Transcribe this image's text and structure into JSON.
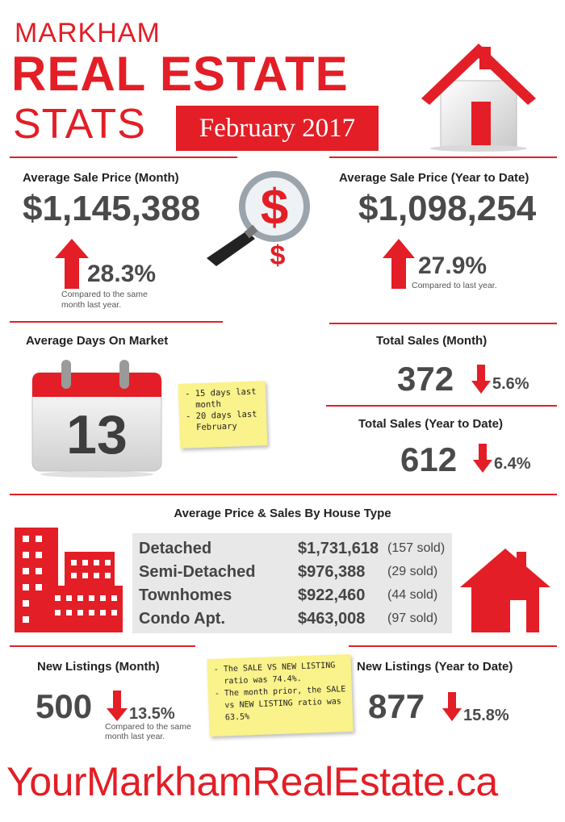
{
  "header": {
    "line1": "MARKHAM",
    "line2": "REAL ESTATE",
    "line3": "STATS",
    "date": "February 2017"
  },
  "avg_price_month": {
    "label": "Average Sale Price (Month)",
    "value": "$1,145,388",
    "change": "28.3%",
    "note_line1": "Compared to the same",
    "note_line2": "month last year."
  },
  "avg_price_ytd": {
    "label": "Average Sale Price (Year to Date)",
    "value": "$1,098,254",
    "change": "27.9%",
    "note": "Compared to last year."
  },
  "days_on_market": {
    "label": "Average Days On Market",
    "value": "13",
    "sticky_line1": "- 15 days last",
    "sticky_line2": "  month",
    "sticky_line3": "- 20 days last",
    "sticky_line4": "  February"
  },
  "total_sales_month": {
    "label": "Total Sales (Month)",
    "value": "372",
    "change": "5.6%"
  },
  "total_sales_ytd": {
    "label": "Total Sales (Year to Date)",
    "value": "612",
    "change": "6.4%"
  },
  "house_type": {
    "title": "Average Price & Sales By House Type",
    "rows": [
      {
        "type": "Detached",
        "price": "$1,731,618",
        "sold": "(157 sold)"
      },
      {
        "type": "Semi-Detached",
        "price": "$976,388",
        "sold": "(29 sold)"
      },
      {
        "type": "Townhomes",
        "price": "$922,460",
        "sold": "(44 sold)"
      },
      {
        "type": "Condo Apt.",
        "price": "$463,008",
        "sold": "(97 sold)"
      }
    ]
  },
  "new_listings_month": {
    "label": "New Listings (Month)",
    "value": "500",
    "change": "13.5%",
    "note_line1": "Compared to the same",
    "note_line2": "month last year."
  },
  "listing_ratio_note": {
    "line1": "- The SALE VS NEW LISTING",
    "line2": "  ratio was 74.4%.",
    "line3": "- The month prior, the SALE",
    "line4": "  vs NEW LISTING ratio was",
    "line5": "  63.5%"
  },
  "new_listings_ytd": {
    "label": "New Listings (Year to Date)",
    "value": "877",
    "change": "15.8%"
  },
  "footer": {
    "website": "YourMarkhamRealEstate.ca"
  },
  "colors": {
    "accent": "#e31e26",
    "text": "#4a4a4a",
    "sticky": "#faf28a",
    "table_bg": "#e8e8e8"
  },
  "icons": [
    "house-icon",
    "magnifier-dollar-icon",
    "up-arrow-icon",
    "down-arrow-icon",
    "calendar-icon",
    "buildings-icon"
  ]
}
